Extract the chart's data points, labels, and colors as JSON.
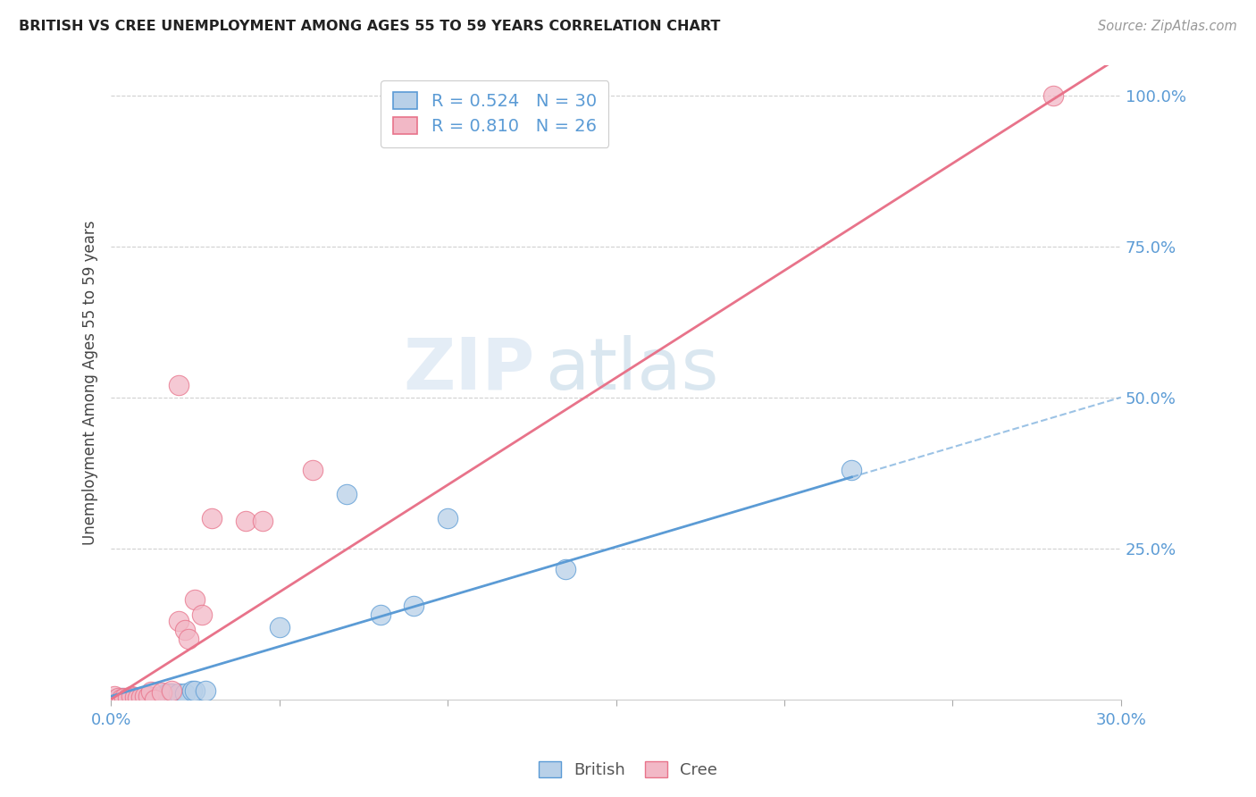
{
  "title": "BRITISH VS CREE UNEMPLOYMENT AMONG AGES 55 TO 59 YEARS CORRELATION CHART",
  "source": "Source: ZipAtlas.com",
  "ylabel": "Unemployment Among Ages 55 to 59 years",
  "xlim": [
    0.0,
    0.3
  ],
  "ylim": [
    0.0,
    1.05
  ],
  "xticks": [
    0.0,
    0.05,
    0.1,
    0.15,
    0.2,
    0.25,
    0.3
  ],
  "xticklabels": [
    "0.0%",
    "",
    "",
    "",
    "",
    "",
    "30.0%"
  ],
  "yticks": [
    0.25,
    0.5,
    0.75,
    1.0
  ],
  "yticklabels": [
    "25.0%",
    "50.0%",
    "75.0%",
    "100.0%"
  ],
  "british_R": 0.524,
  "british_N": 30,
  "cree_R": 0.81,
  "cree_N": 26,
  "british_color": "#b8d0e8",
  "cree_color": "#f2b8c6",
  "british_line_color": "#5b9bd5",
  "cree_line_color": "#e8738a",
  "british_line_slope": 1.65,
  "british_line_intercept": 0.005,
  "cree_line_slope": 3.55,
  "cree_line_intercept": 0.0,
  "british_scatter": [
    [
      0.001,
      0.0
    ],
    [
      0.002,
      0.0
    ],
    [
      0.003,
      0.002
    ],
    [
      0.004,
      0.001
    ],
    [
      0.005,
      0.002
    ],
    [
      0.006,
      0.001
    ],
    [
      0.007,
      0.002
    ],
    [
      0.008,
      0.002
    ],
    [
      0.009,
      0.003
    ],
    [
      0.01,
      0.003
    ],
    [
      0.011,
      0.003
    ],
    [
      0.012,
      0.004
    ],
    [
      0.013,
      0.004
    ],
    [
      0.014,
      0.004
    ],
    [
      0.015,
      0.005
    ],
    [
      0.016,
      0.01
    ],
    [
      0.017,
      0.01
    ],
    [
      0.018,
      0.01
    ],
    [
      0.02,
      0.01
    ],
    [
      0.022,
      0.01
    ],
    [
      0.024,
      0.015
    ],
    [
      0.025,
      0.015
    ],
    [
      0.028,
      0.015
    ],
    [
      0.05,
      0.12
    ],
    [
      0.07,
      0.34
    ],
    [
      0.08,
      0.14
    ],
    [
      0.09,
      0.155
    ],
    [
      0.1,
      0.3
    ],
    [
      0.135,
      0.215
    ],
    [
      0.22,
      0.38
    ]
  ],
  "cree_scatter": [
    [
      0.001,
      0.005
    ],
    [
      0.002,
      0.002
    ],
    [
      0.003,
      0.001
    ],
    [
      0.004,
      0.002
    ],
    [
      0.005,
      0.002
    ],
    [
      0.006,
      0.005
    ],
    [
      0.007,
      0.004
    ],
    [
      0.008,
      0.003
    ],
    [
      0.009,
      0.004
    ],
    [
      0.01,
      0.005
    ],
    [
      0.011,
      0.006
    ],
    [
      0.012,
      0.013
    ],
    [
      0.013,
      0.0
    ],
    [
      0.015,
      0.012
    ],
    [
      0.018,
      0.015
    ],
    [
      0.02,
      0.13
    ],
    [
      0.022,
      0.115
    ],
    [
      0.023,
      0.1
    ],
    [
      0.025,
      0.165
    ],
    [
      0.027,
      0.14
    ],
    [
      0.04,
      0.295
    ],
    [
      0.045,
      0.295
    ],
    [
      0.06,
      0.38
    ],
    [
      0.02,
      0.52
    ],
    [
      0.03,
      0.3
    ],
    [
      0.28,
      1.0
    ]
  ],
  "background_color": "#ffffff",
  "grid_color": "#d0d0d0",
  "watermark_zip": "ZIP",
  "watermark_atlas": "atlas",
  "legend_bottom_labels": [
    "British",
    "Cree"
  ]
}
